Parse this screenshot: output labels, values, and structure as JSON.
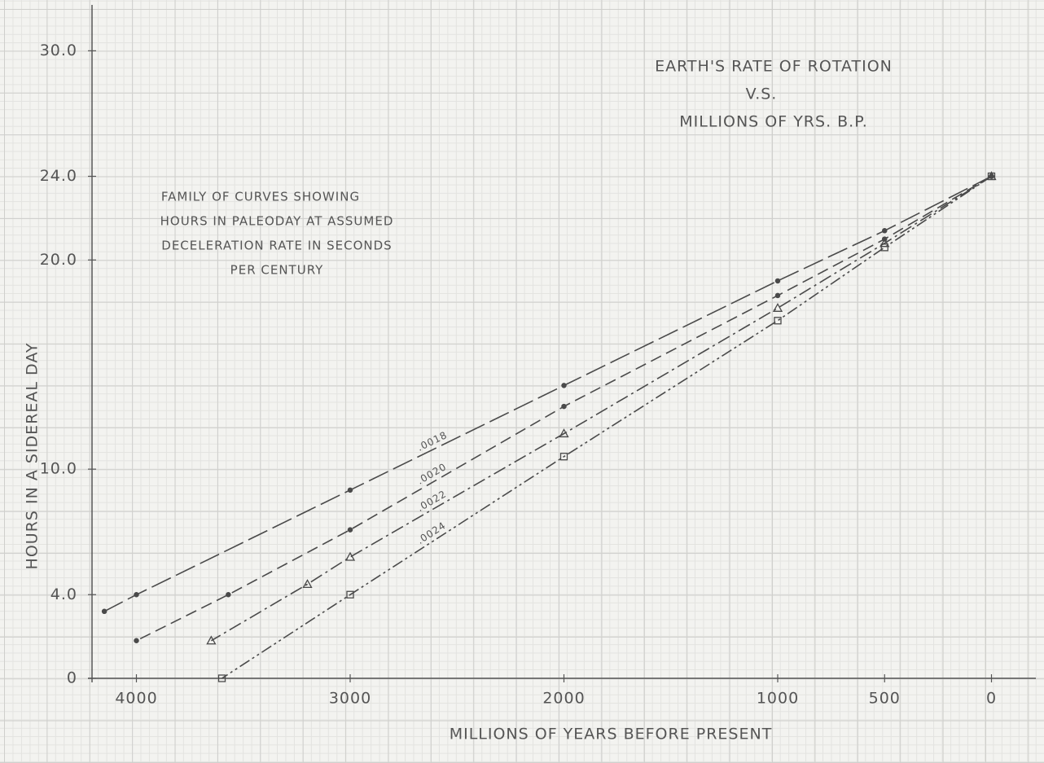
{
  "chart_data": {
    "type": "line",
    "title": [
      "EARTH'S RATE OF ROTATION",
      "V.S.",
      "MILLIONS OF YRS. B.P."
    ],
    "annotation": [
      "FAMILY OF CURVES SHOWING",
      "HOURS IN PALEODAY AT ASSUMED",
      "DECELERATION RATE IN SECONDS",
      "PER CENTURY"
    ],
    "x_label": "MILLIONS OF YEARS BEFORE PRESENT",
    "y_label": "HOURS IN A SIDEREAL DAY",
    "xlim": [
      4200,
      -200
    ],
    "xticks": [
      4000,
      3000,
      2000,
      1000,
      500,
      0
    ],
    "ylim": [
      0,
      32
    ],
    "yticks": [
      0,
      {
        "value": 4,
        "label": "4.0"
      },
      {
        "value": 10,
        "label": "10.0"
      },
      {
        "value": 20,
        "label": "20.0"
      },
      {
        "value": 24,
        "label": "24.0"
      },
      {
        "value": 30,
        "label": "30.0"
      }
    ],
    "grid": true,
    "series": [
      {
        "name": ".0018",
        "color": "#4a4a4a",
        "marker": "circle",
        "x": [
          0,
          500,
          1000,
          2000,
          3000,
          4000,
          4150
        ],
        "values": [
          24,
          21.4,
          19,
          14,
          9,
          4,
          3.2
        ]
      },
      {
        "name": ".0020",
        "color": "#4a4a4a",
        "marker": "circle",
        "x": [
          0,
          500,
          1000,
          2000,
          3000,
          3570,
          4000
        ],
        "values": [
          24,
          21,
          18.3,
          13,
          7.1,
          4,
          1.8
        ]
      },
      {
        "name": ".0022",
        "color": "#4a4a4a",
        "marker": "triangle",
        "x": [
          0,
          500,
          1000,
          2000,
          3000,
          3200,
          3650
        ],
        "values": [
          24,
          20.8,
          17.7,
          11.7,
          5.8,
          4.5,
          1.8
        ]
      },
      {
        "name": ".0024",
        "color": "#4a4a4a",
        "marker": "square",
        "x": [
          0,
          500,
          1000,
          2000,
          3000,
          3600
        ],
        "values": [
          24,
          20.6,
          17.1,
          10.6,
          4,
          0
        ]
      }
    ]
  }
}
